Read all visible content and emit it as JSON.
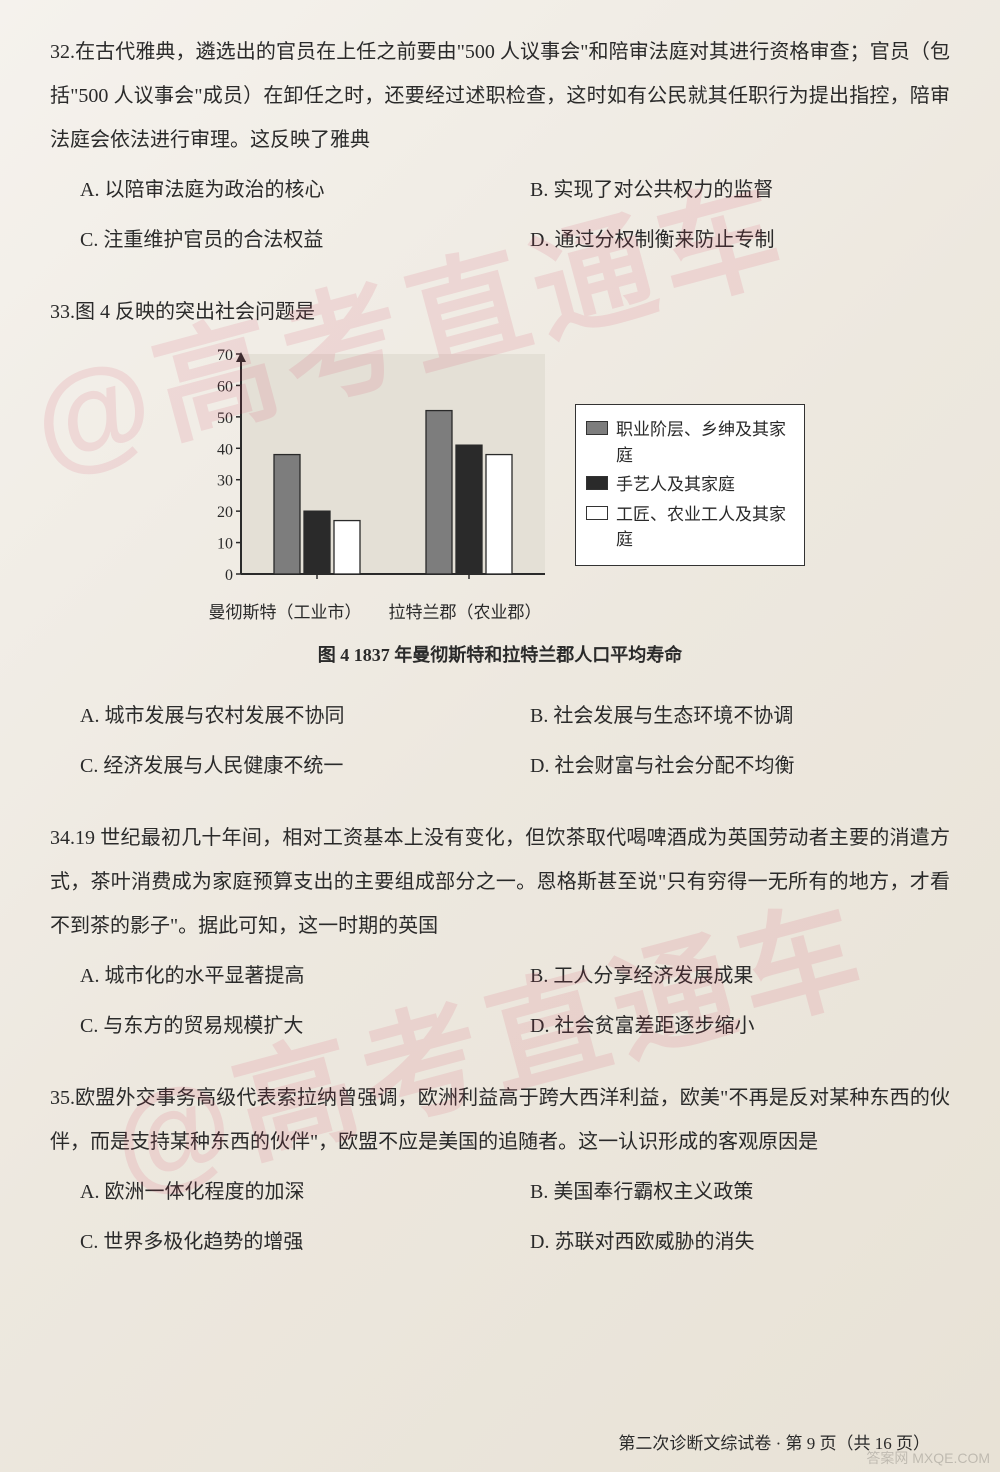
{
  "q32": {
    "num": "32.",
    "stem": "在古代雅典，遴选出的官员在上任之前要由\"500 人议事会\"和陪审法庭对其进行资格审查；官员（包括\"500 人议事会\"成员）在卸任之时，还要经过述职检查，这时如有公民就其任职行为提出指控，陪审法庭会依法进行审理。这反映了雅典",
    "A": "A. 以陪审法庭为政治的核心",
    "B": "B. 实现了对公共权力的监督",
    "C": "C. 注重维护官员的合法权益",
    "D": "D. 通过分权制衡来防止专制"
  },
  "q33": {
    "num": "33.",
    "stem": "图 4 反映的突出社会问题是",
    "chart": {
      "type": "bar",
      "categories": [
        "曼彻斯特（工业市）",
        "拉特兰郡（农业郡）"
      ],
      "series": [
        {
          "name": "职业阶层、乡绅及其家庭",
          "color": "#7d7d7d",
          "values": [
            38,
            52
          ]
        },
        {
          "name": "手艺人及其家庭",
          "color": "#2a2a2a",
          "values": [
            20,
            41
          ]
        },
        {
          "name": "工匠、农业工人及其家庭",
          "color": "#ffffff",
          "values": [
            17,
            38
          ]
        }
      ],
      "ylim": [
        0,
        70
      ],
      "ytick_step": 10,
      "plot_bg": "#e4e0d6",
      "axis_color": "#2a2a2a",
      "bar_border": "#2a2a2a",
      "legend_bg": "#ffffff"
    },
    "caption": "图 4  1837 年曼彻斯特和拉特兰郡人口平均寿命",
    "A": "A. 城市发展与农村发展不协同",
    "B": "B. 社会发展与生态环境不协调",
    "C": "C. 经济发展与人民健康不统一",
    "D": "D. 社会财富与社会分配不均衡"
  },
  "q34": {
    "num": "34.",
    "stem": "19 世纪最初几十年间，相对工资基本上没有变化，但饮茶取代喝啤酒成为英国劳动者主要的消遣方式，茶叶消费成为家庭预算支出的主要组成部分之一。恩格斯甚至说\"只有穷得一无所有的地方，才看不到茶的影子\"。据此可知，这一时期的英国",
    "A": "A. 城市化的水平显著提高",
    "B": "B. 工人分享经济发展成果",
    "C": "C. 与东方的贸易规模扩大",
    "D": "D. 社会贫富差距逐步缩小"
  },
  "q35": {
    "num": "35.",
    "stem": "欧盟外交事务高级代表索拉纳曾强调，欧洲利益高于跨大西洋利益，欧美\"不再是反对某种东西的伙伴，而是支持某种东西的伙伴\"，欧盟不应是美国的追随者。这一认识形成的客观原因是",
    "A": "A. 欧洲一体化程度的加深",
    "B": "B. 美国奉行霸权主义政策",
    "C": "C. 世界多极化趋势的增强",
    "D": "D. 苏联对西欧威胁的消失"
  },
  "footer": "第二次诊断文综试卷 · 第 9 页（共 16 页）",
  "watermark": "@高考直通车",
  "corner": "答案网\nMXQE.COM"
}
